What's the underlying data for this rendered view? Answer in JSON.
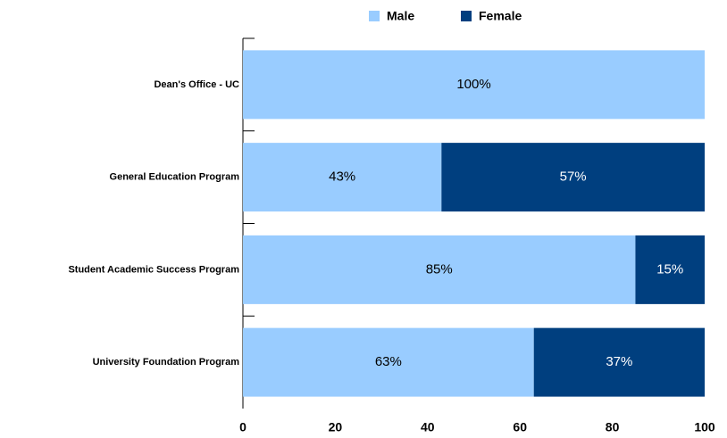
{
  "chart_data": {
    "type": "stacked-barh",
    "categories": [
      "Dean's Office - UC",
      "General Education Program",
      "Student Academic Success Program",
      "University Foundation Program"
    ],
    "series": [
      {
        "name": "Male",
        "color": "#99ccff",
        "values": [
          100,
          43,
          85,
          63
        ],
        "value_labels": [
          "100%",
          "43%",
          "85%",
          "63%"
        ]
      },
      {
        "name": "Female",
        "color": "#003f7f",
        "values": [
          null,
          57,
          15,
          37
        ],
        "value_labels": [
          null,
          "57%",
          "15%",
          "37%"
        ]
      }
    ],
    "xlim": [
      0,
      100
    ],
    "xticks": [
      0,
      20,
      40,
      60,
      80,
      100
    ],
    "legend": "top"
  }
}
